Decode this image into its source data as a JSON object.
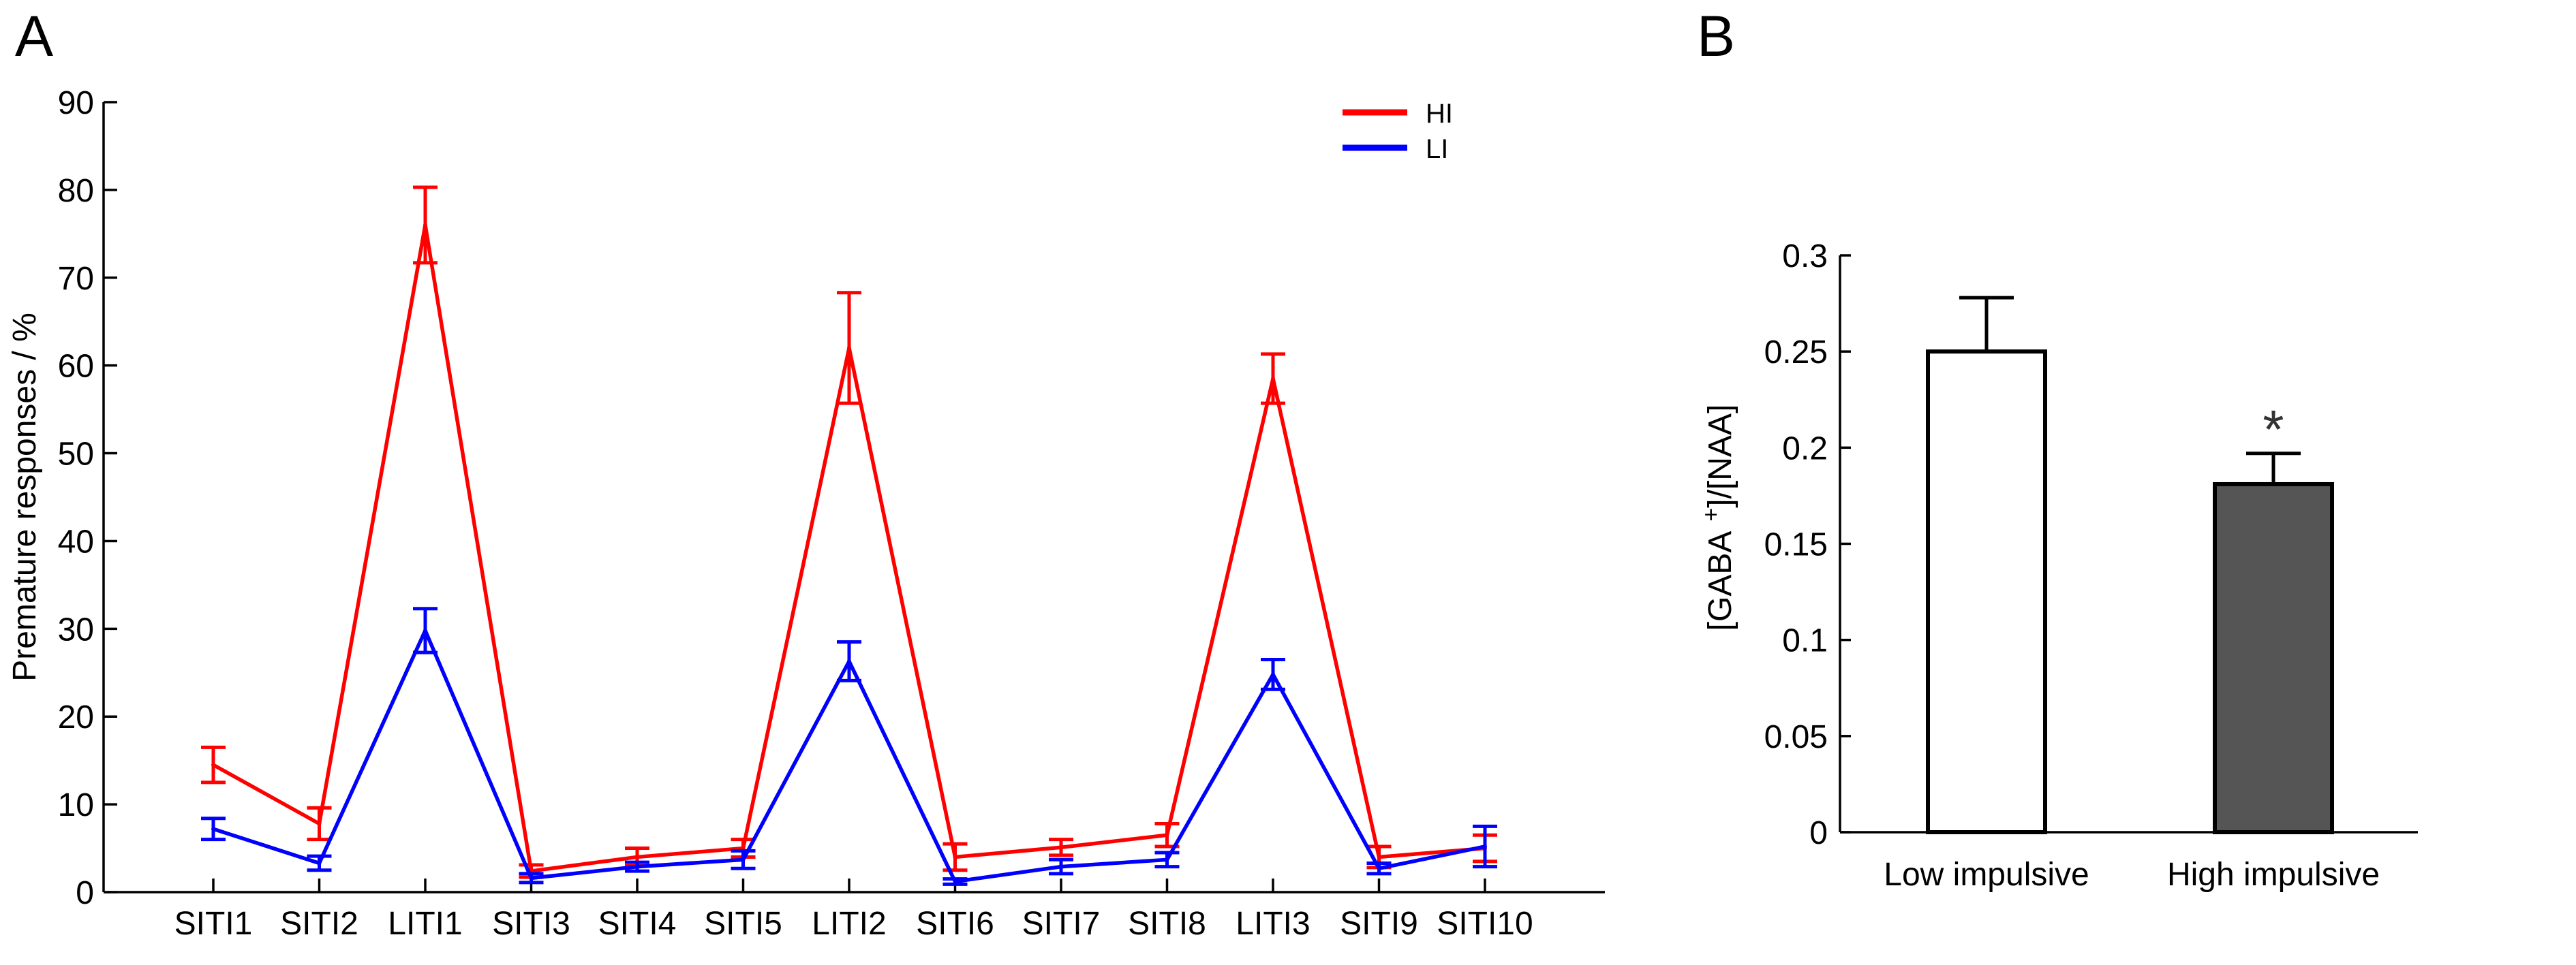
{
  "panel_labels": {
    "a": "A",
    "b": "B"
  },
  "colors": {
    "HI": "#ff0000",
    "LI": "#0000ff",
    "bar_low": "#ffffff",
    "bar_high": "#555555"
  },
  "chart_data": [
    {
      "type": "line",
      "panel": "A",
      "title": "",
      "xlabel": "",
      "ylabel": "Premature responses / %",
      "ylim": [
        0,
        90
      ],
      "yticks": [
        0,
        10,
        20,
        30,
        40,
        50,
        60,
        70,
        80,
        90
      ],
      "categories": [
        "SITI1",
        "SITI2",
        "LITI1",
        "SITI3",
        "SITI4",
        "SITI5",
        "LITI2",
        "SITI6",
        "SITI7",
        "SITI8",
        "LITI3",
        "SITI9",
        "SITI10"
      ],
      "legend": {
        "position": "top-right",
        "entries": [
          "HI",
          "LI"
        ]
      },
      "series": [
        {
          "name": "HI",
          "color": "#ff0000",
          "values": [
            14.5,
            7.8,
            76,
            2.4,
            4.0,
            5.0,
            62,
            4.0,
            5.1,
            6.5,
            58.5,
            4.0,
            5.0
          ],
          "err": [
            2.0,
            1.8,
            4.3,
            0.7,
            1.0,
            1.0,
            6.3,
            1.5,
            0.9,
            1.3,
            2.8,
            1.2,
            1.5
          ]
        },
        {
          "name": "LI",
          "color": "#0000ff",
          "values": [
            7.2,
            3.3,
            29.8,
            1.6,
            2.9,
            3.7,
            26.3,
            1.2,
            2.9,
            3.7,
            24.8,
            2.7,
            5.2
          ],
          "err": [
            1.2,
            0.8,
            2.5,
            0.5,
            0.5,
            1.0,
            2.2,
            0.3,
            0.8,
            0.8,
            1.7,
            0.6,
            2.3
          ]
        }
      ]
    },
    {
      "type": "bar",
      "panel": "B",
      "title": "",
      "xlabel": "",
      "ylabel_main": "[GABA",
      "ylabel_sup": "+",
      "ylabel_tail": "]/[NAA]",
      "ylim": [
        0,
        0.3
      ],
      "yticks": [
        0,
        0.05,
        0.1,
        0.15,
        0.2,
        0.25,
        0.3
      ],
      "ytick_labels": [
        "0",
        "0.05",
        "0.1",
        "0.15",
        "0.2",
        "0.25",
        "0.3"
      ],
      "categories": [
        "Low impulsive",
        "High impulsive"
      ],
      "values": [
        0.25,
        0.181
      ],
      "err": [
        0.028,
        0.016
      ],
      "significance": [
        "",
        "*"
      ]
    }
  ]
}
